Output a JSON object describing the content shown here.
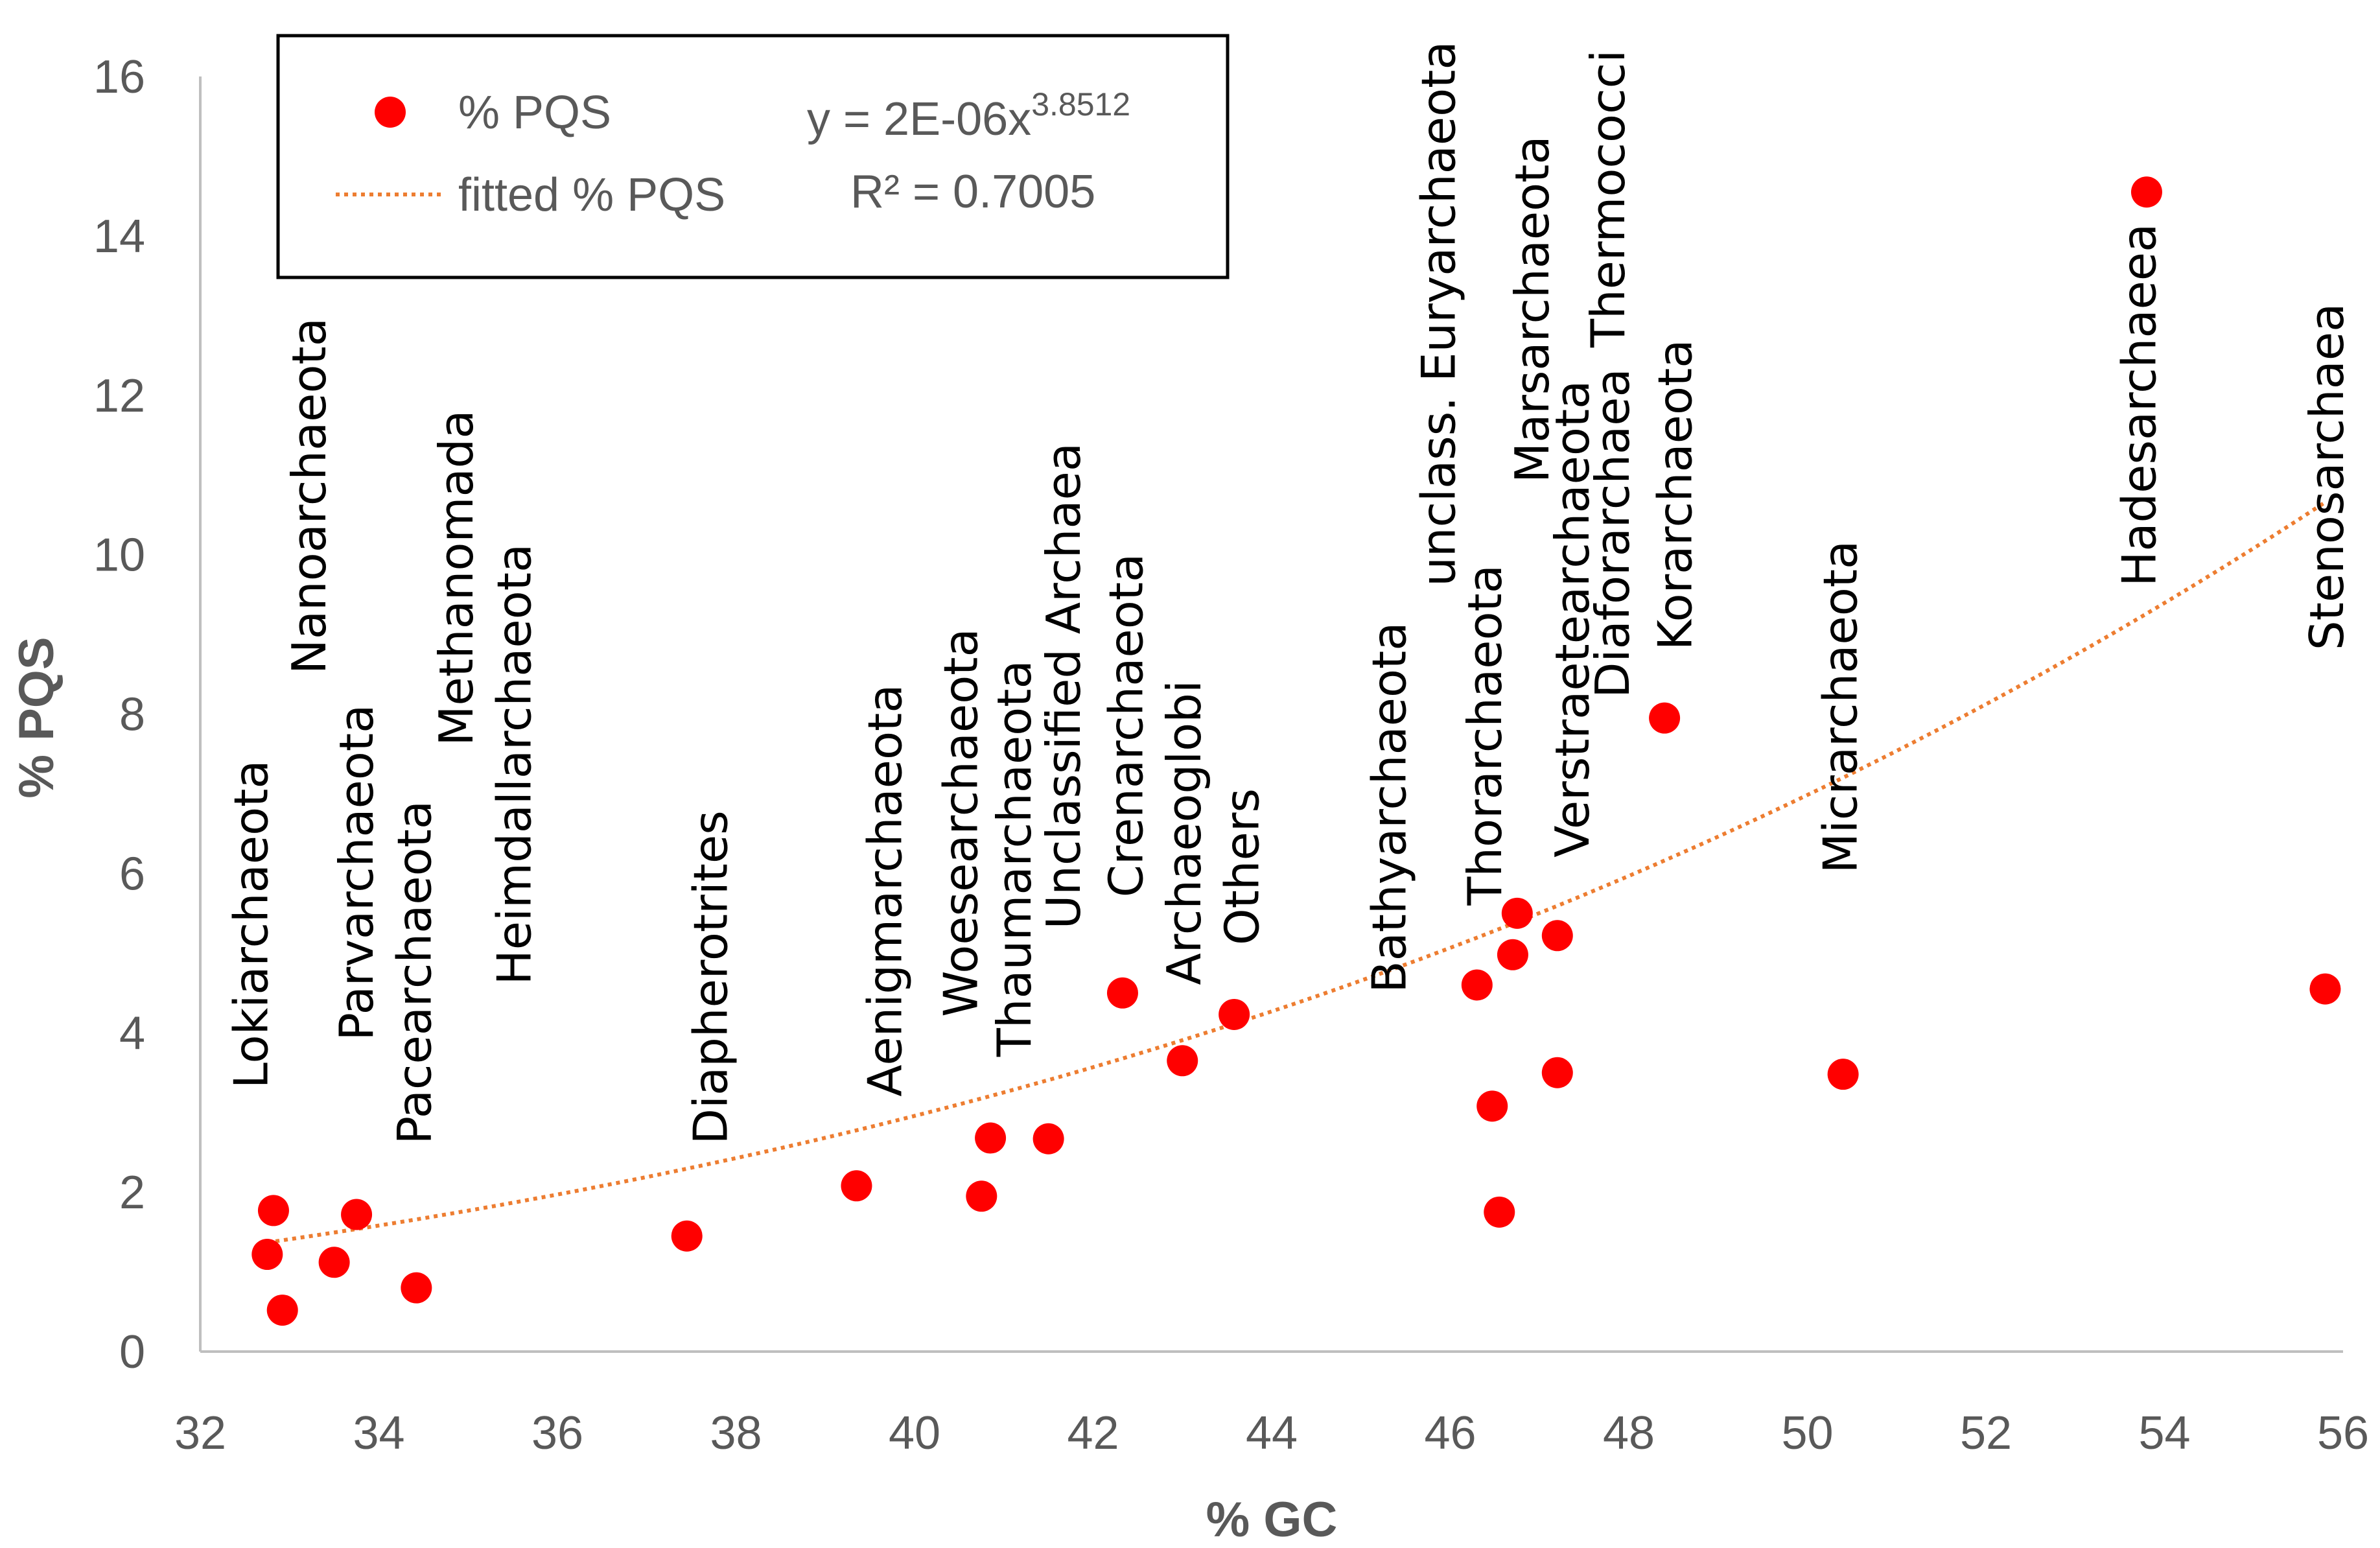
{
  "chart_data": {
    "type": "scatter",
    "title": "",
    "xlabel": "% GC",
    "ylabel": "% PQS",
    "xlim": [
      32,
      56
    ],
    "ylim": [
      0,
      16
    ],
    "xticks": [
      32,
      34,
      36,
      38,
      40,
      42,
      44,
      46,
      48,
      50,
      52,
      54,
      56
    ],
    "yticks": [
      0,
      2,
      4,
      6,
      8,
      10,
      12,
      14,
      16
    ],
    "grid": false,
    "legend_position": "top-left",
    "colors": {
      "marker": "#ff0000",
      "trend": "#ed7d31",
      "axis": "#bfbfbf",
      "text": "#595959"
    },
    "series": [
      {
        "name": "% PQS",
        "points": [
          {
            "x": 32.75,
            "y": 1.22
          },
          {
            "x": 32.82,
            "y": 1.77
          },
          {
            "x": 32.92,
            "y": 0.52
          },
          {
            "x": 33.5,
            "y": 1.12
          },
          {
            "x": 33.75,
            "y": 1.72
          },
          {
            "x": 34.42,
            "y": 0.8
          },
          {
            "x": 37.45,
            "y": 1.45
          },
          {
            "x": 39.35,
            "y": 2.08
          },
          {
            "x": 40.75,
            "y": 1.95
          },
          {
            "x": 40.85,
            "y": 2.68
          },
          {
            "x": 41.5,
            "y": 2.67
          },
          {
            "x": 42.33,
            "y": 4.5
          },
          {
            "x": 43.0,
            "y": 3.65
          },
          {
            "x": 43.58,
            "y": 4.23
          },
          {
            "x": 46.3,
            "y": 4.6
          },
          {
            "x": 46.47,
            "y": 3.08
          },
          {
            "x": 46.55,
            "y": 1.75
          },
          {
            "x": 46.7,
            "y": 4.98
          },
          {
            "x": 46.75,
            "y": 5.5
          },
          {
            "x": 47.2,
            "y": 5.22
          },
          {
            "x": 47.2,
            "y": 3.5
          },
          {
            "x": 48.4,
            "y": 7.95
          },
          {
            "x": 50.4,
            "y": 3.48
          },
          {
            "x": 53.8,
            "y": 14.55
          },
          {
            "x": 55.8,
            "y": 4.55
          }
        ]
      },
      {
        "name": "fitted % PQS",
        "type": "power",
        "coefficient": 2e-06,
        "exponent": 3.8512,
        "x_range": [
          32.75,
          55.8
        ]
      }
    ],
    "legend": {
      "items": [
        "% PQS",
        "fitted % PQS"
      ],
      "equation_base": "y = 2E-06x",
      "equation_exponent": "3.8512",
      "r_squared": "R² = 0.7005"
    },
    "annotations": [
      {
        "text": "Lokiarchaeota",
        "x": 32.75,
        "y": 3.3
      },
      {
        "text": "Nanoarchaeota",
        "x": 33.4,
        "y": 8.5
      },
      {
        "text": "Parvarchaeota",
        "x": 33.93,
        "y": 3.9
      },
      {
        "text": "Pacearchaeota",
        "x": 34.58,
        "y": 2.6
      },
      {
        "text": "Methanomada",
        "x": 35.05,
        "y": 7.6
      },
      {
        "text": "Heimdallarchaeota",
        "x": 35.7,
        "y": 4.6
      },
      {
        "text": "Diapherotrites",
        "x": 37.9,
        "y": 2.6
      },
      {
        "text": "Aenigmarchaeota",
        "x": 39.85,
        "y": 3.2
      },
      {
        "text": "Woesearchaeota",
        "x": 40.7,
        "y": 4.2
      },
      {
        "text": "Thaumarchaeota",
        "x": 41.3,
        "y": 3.7
      },
      {
        "text": "Unclassified Archaea",
        "x": 41.85,
        "y": 5.3
      },
      {
        "text": "Crenarchaeota",
        "x": 42.55,
        "y": 5.7
      },
      {
        "text": "Archaeoglobi",
        "x": 43.2,
        "y": 4.6
      },
      {
        "text": "Others",
        "x": 43.85,
        "y": 5.1
      },
      {
        "text": "Bathyarchaeota",
        "x": 45.5,
        "y": 4.5
      },
      {
        "text": "unclass. Euryarchaeota",
        "x": 46.05,
        "y": 9.6
      },
      {
        "text": "Thorarchaeota",
        "x": 46.57,
        "y": 5.6
      },
      {
        "text": "Marsarchaeota",
        "x": 47.1,
        "y": 10.9
      },
      {
        "text": "Verstraetearchaeota",
        "x": 47.55,
        "y": 6.2
      },
      {
        "text": "Thermococci",
        "x": 47.95,
        "y": 12.6
      },
      {
        "text": "Diaforarchaea",
        "x": 48.0,
        "y": 8.2
      },
      {
        "text": "Korarchaeota",
        "x": 48.7,
        "y": 8.8
      },
      {
        "text": "Micrarchaeota",
        "x": 50.55,
        "y": 6.0
      },
      {
        "text": "Hadesarchaeea",
        "x": 53.9,
        "y": 9.6
      },
      {
        "text": "Stenosarchaea",
        "x": 56.0,
        "y": 8.8
      }
    ]
  }
}
